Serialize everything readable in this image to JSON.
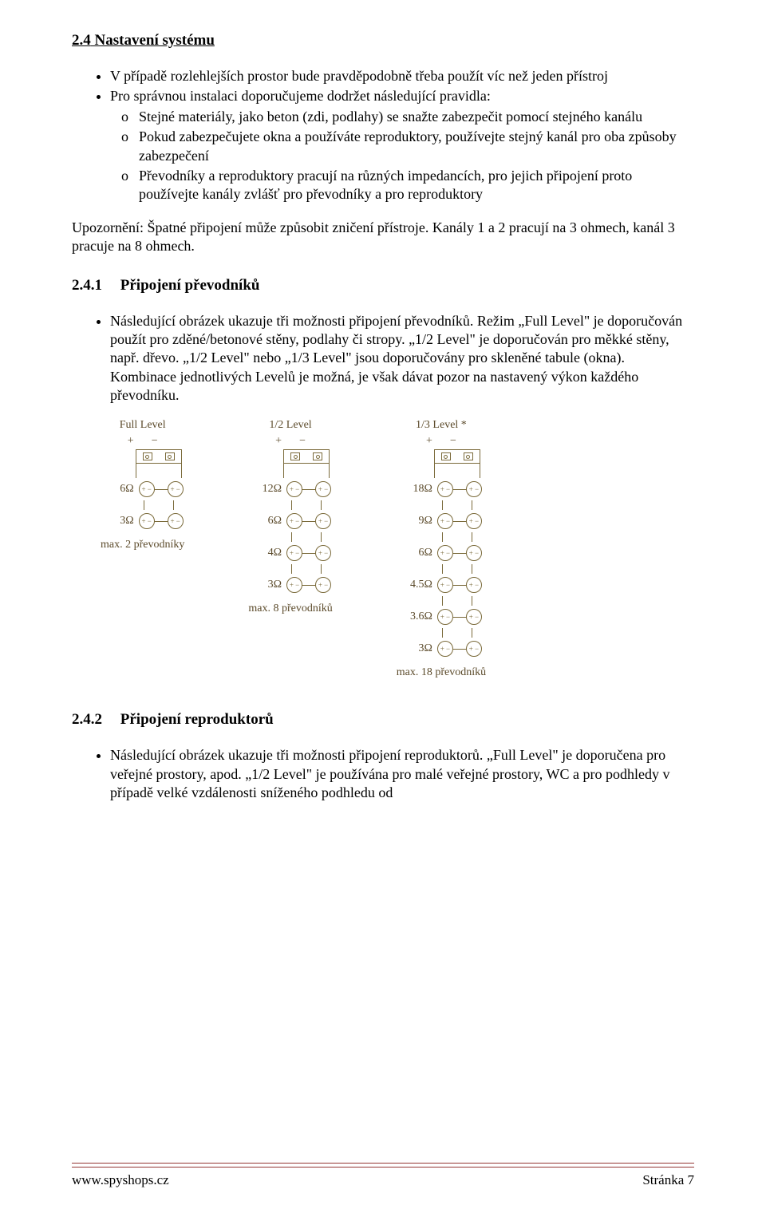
{
  "section": {
    "number": "2.4",
    "title": "Nastavení systému",
    "bullets": [
      "V případě rozlehlejších prostor bude pravděpodobně třeba použít víc než jeden přístroj",
      "Pro správnou instalaci doporučujeme dodržet následující pravidla:"
    ],
    "subbullets": [
      "Stejné materiály, jako beton (zdi, podlahy) se snažte zabezpečit pomocí stejného kanálu",
      "Pokud zabezpečujete okna a používáte reproduktory, používejte stejný kanál pro oba způsoby zabezpečení",
      "Převodníky a reproduktory pracují na různých impedancích, pro jejich připojení proto používejte kanály zvlášť pro převodníky a pro reproduktory"
    ],
    "warning": "Upozornění: Špatné připojení může způsobit zničení přístroje. Kanály 1 a 2 pracují na 3 ohmech, kanál 3 pracuje na 8 ohmech."
  },
  "sub241": {
    "number": "2.4.1",
    "title": "Připojení převodníků",
    "bullet": "Následující obrázek ukazuje tři možnosti připojení převodníků. Režim „Full Level\" je doporučován použít pro zděné/betonové stěny, podlahy či stropy. „1/2 Level\" je doporučován pro měkké stěny, např. dřevo. „1/2 Level\" nebo „1/3 Level\" jsou doporučovány pro skleněné tabule (okna). Kombinace jednotlivých Levelů je možná, je však dávat pozor na nastavený výkon každého převodníku."
  },
  "diagram": {
    "text_color": "#5b4a2a",
    "line_color": "#7a6a3a",
    "columns": [
      {
        "title": "Full Level",
        "rows": [
          {
            "label": "6Ω"
          },
          {
            "label": "3Ω"
          }
        ],
        "max": "max. 2 převodníky"
      },
      {
        "title": "1/2 Level",
        "rows": [
          {
            "label": "12Ω"
          },
          {
            "label": "6Ω"
          },
          {
            "label": "4Ω"
          },
          {
            "label": "3Ω"
          }
        ],
        "max": "max. 8 převodníků"
      },
      {
        "title": "1/3 Level *",
        "rows": [
          {
            "label": "18Ω"
          },
          {
            "label": "9Ω"
          },
          {
            "label": "6Ω"
          },
          {
            "label": "4.5Ω"
          },
          {
            "label": "3.6Ω"
          },
          {
            "label": "3Ω"
          }
        ],
        "max": "max. 18 převodníků"
      }
    ],
    "plus": "+",
    "minus": "−"
  },
  "sub242": {
    "number": "2.4.2",
    "title": "Připojení reproduktorů",
    "bullet": "Následující obrázek ukazuje tři možnosti připojení reproduktorů. „Full Level\" je doporučena pro veřejné prostory, apod. „1/2 Level\" je používána pro malé veřejné prostory, WC a pro podhledy v případě velké vzdálenosti sníženého podhledu od"
  },
  "footer": {
    "left": "www.spyshops.cz",
    "right": "Stránka 7",
    "rule_color": "#943634"
  }
}
